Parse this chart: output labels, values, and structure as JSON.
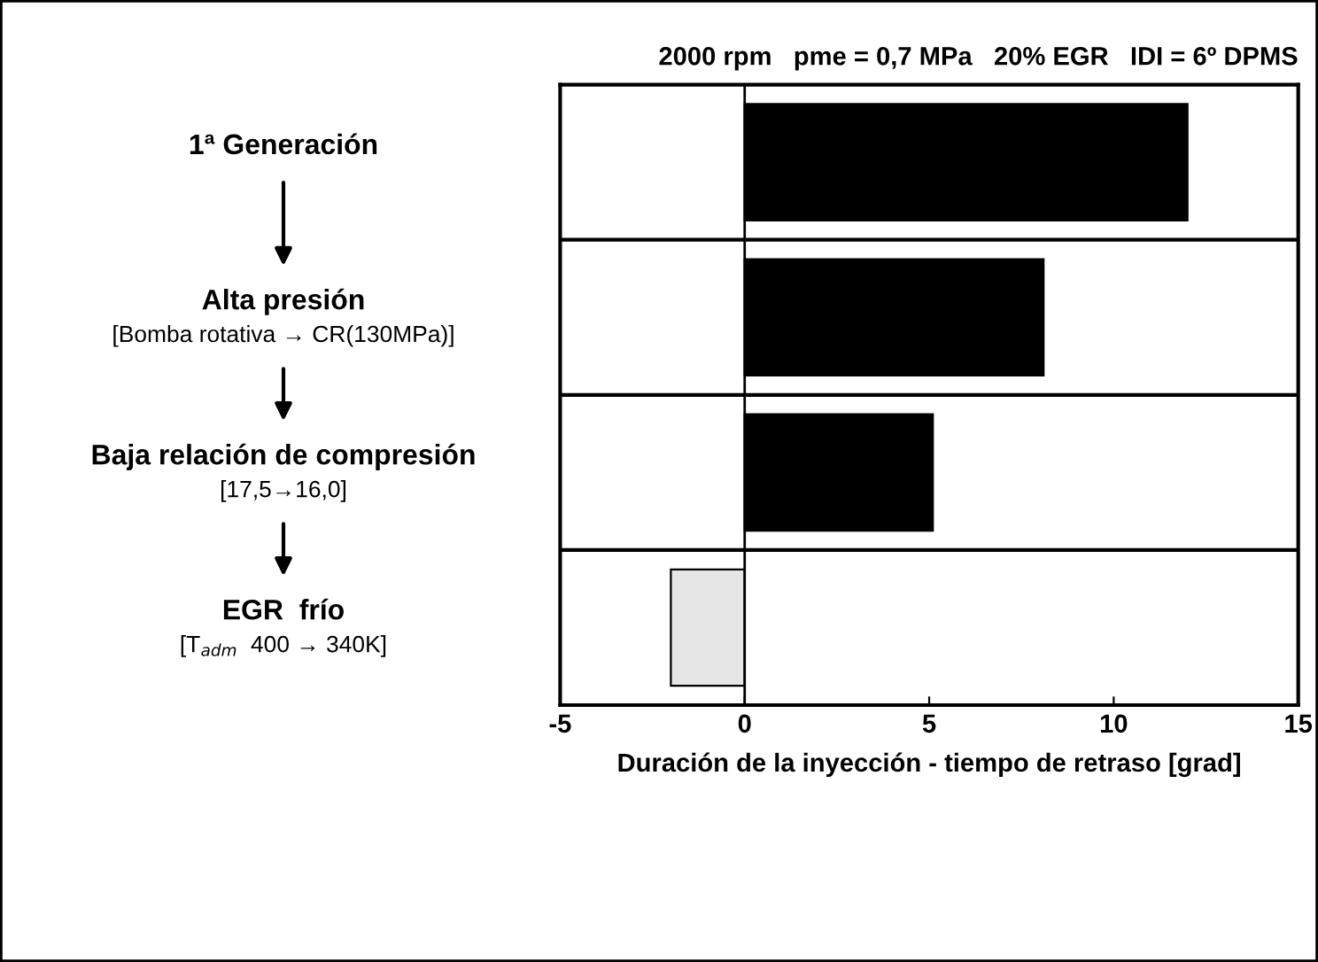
{
  "chart_data": {
    "type": "bar",
    "orientation": "horizontal",
    "title": "2000 rpm   pme = 0,7 MPa   20% EGR   IDI = 6º DPMS",
    "xlabel": "Duración de la inyección - tiempo de retraso [grad]",
    "categories": [
      "1ª Generación",
      "Alta presión\n[Bomba rotativa → CR(130MPa)]",
      "Baja relación de compresión\n[17,5→16,0]",
      "EGR  frío\n[T$_{adm}$  400 → 340K]"
    ],
    "values": [
      12,
      8.1,
      5.1,
      -2
    ],
    "colors": [
      "#000000",
      "#000000",
      "#000000",
      "#e6e6e6"
    ],
    "xlim": [
      -5,
      15
    ],
    "xticks": [
      -5,
      0,
      5,
      10,
      15
    ],
    "ref_lines": [
      {
        "axis": "x",
        "value": 0
      }
    ],
    "grid": "y"
  }
}
